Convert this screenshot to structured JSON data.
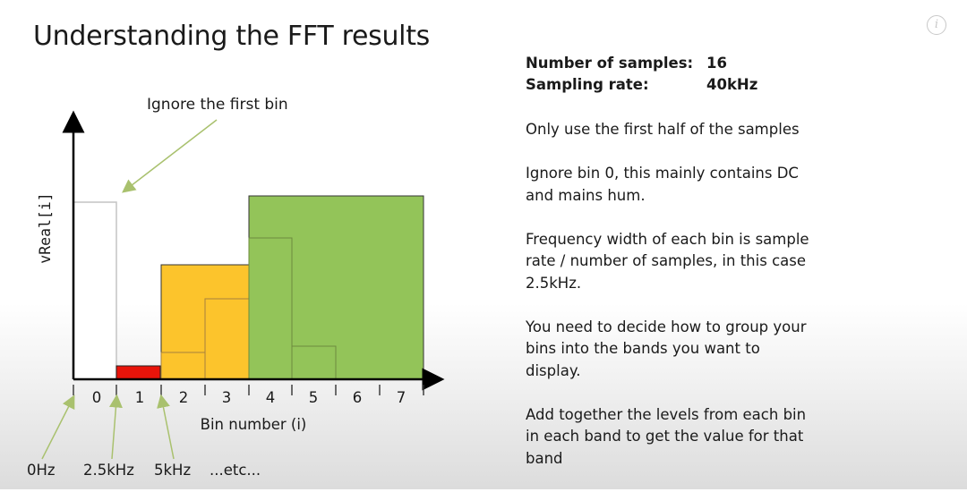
{
  "slide": {
    "title": "Understanding the FFT results",
    "ignore_label": "Ignore the first bin",
    "y_axis_label": "vReal[i]",
    "x_axis_label": "Bin number (i)",
    "bins": [
      "0",
      "1",
      "2",
      "3",
      "4",
      "5",
      "6",
      "7"
    ],
    "freq_labels": [
      "0Hz",
      "2.5kHz",
      "5kHz",
      "...etc..."
    ],
    "stats": [
      {
        "label": "Number of samples:",
        "value": "16"
      },
      {
        "label": "Sampling rate:",
        "value": "40kHz"
      }
    ],
    "notes": [
      "Only use the first half of the samples",
      "Ignore bin 0, this mainly contains DC and mains hum.",
      "Frequency width of each bin is sample rate / number of samples, in this case 2.5kHz.",
      "You need to decide how to group your bins into the bands you want to display.",
      "Add together the levels from each bin in each band to get the value for that band"
    ],
    "colors": {
      "red_band": "#e8140a",
      "yellow_band": "#fcc42c",
      "green_band": "#93c459",
      "axis": "#000000",
      "arrow": "#a9c16e"
    },
    "icon": "info-icon"
  }
}
